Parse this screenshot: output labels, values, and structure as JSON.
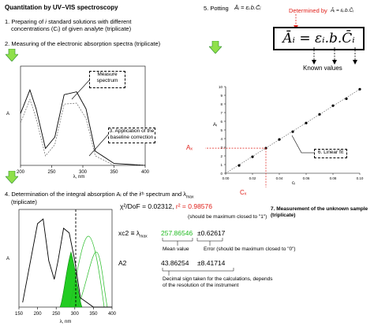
{
  "title": "Quantitation by UV–VIS spectroscopy",
  "steps": {
    "s1": "1. Preparing of i standard solutions with different concentrations (Cᵢ) of given analyte (triplicate)",
    "s1a": "1. Preparing of",
    "s1b": "i",
    "s1c": "standard solutions with different",
    "s1d": "concentrations (Cᵢ) of given analyte (triplicate)",
    "s2": "2. Measuring of the electronic absorption spectra (triplicate)",
    "s4a": "4. Determination of the integral absorption Aᵢ of the iᵗʰ spectrum and λ",
    "s4b": "max",
    "s4c": "(triplicate)",
    "s5": "5. Potting",
    "s7": "7. Measurement of the unknown sample (triplicate)"
  },
  "equation": {
    "small": "Āᵢ = εᵢ.b.C̄ᵢ",
    "big": "Āᵢ = εᵢ.b.C̄ᵢ",
    "determined_by": "Determined by",
    "known_values": "Known values"
  },
  "callouts": {
    "measure": "Measure spectrum",
    "baseline": "3. Application of the baseline correction",
    "linear": "6. Linear fit",
    "ax": "Aₓ",
    "cx": "Cₓ"
  },
  "fit": {
    "chi_label": "χ²/DoF =",
    "chi_value": "0.02312,",
    "r2_label": "r² =",
    "r2_value": "0.98576",
    "r2_note": "(should be maximum closed to \"1\")",
    "xc2_label": "xc2 ≡ λ",
    "xc2_sub": "max",
    "xc2_value": "257.86546",
    "xc2_err": "±0.62617",
    "mean_note": "Mean value",
    "err_note": "Error (should be maximum closed to \"0\")",
    "a2_label": "A2",
    "a2_value": "43.86254",
    "a2_err": "±8.41714",
    "decimal_note1": "Decimal sign taken for the calculations, depends",
    "decimal_note2": "of the resolution of the instrument"
  },
  "chart_data": [
    {
      "type": "line",
      "xlabel": "λ, nm",
      "ylabel": "A",
      "xlim": [
        200,
        400
      ],
      "x_ticks": [
        "200",
        "250",
        "300",
        "350",
        "400"
      ],
      "series": [
        {
          "values": [
            [
              200,
              0.55
            ],
            [
              215,
              0.8
            ],
            [
              225,
              0.6
            ],
            [
              240,
              0.18
            ],
            [
              255,
              0.3
            ],
            [
              270,
              0.75
            ],
            [
              290,
              0.78
            ],
            [
              305,
              0.6
            ],
            [
              320,
              0.15
            ],
            [
              350,
              0.02
            ],
            [
              400,
              0.0
            ]
          ]
        },
        {
          "values": [
            [
              200,
              0.45
            ],
            [
              215,
              0.7
            ],
            [
              225,
              0.5
            ],
            [
              240,
              0.1
            ],
            [
              255,
              0.22
            ],
            [
              270,
              0.65
            ],
            [
              290,
              0.66
            ],
            [
              305,
              0.5
            ],
            [
              320,
              0.1
            ],
            [
              350,
              0.0
            ],
            [
              400,
              0.0
            ]
          ]
        }
      ]
    },
    {
      "type": "scatter",
      "xlabel": "cᵢ",
      "ylabel": "Aᵢ",
      "xlim": [
        0,
        0.1
      ],
      "ylim": [
        0,
        10
      ],
      "x_ticks": [
        "0.00",
        "0.02",
        "0.04",
        "0.06",
        "0.08",
        "0.10"
      ],
      "y_ticks": [
        "0",
        "1",
        "2",
        "3",
        "4",
        "5",
        "6",
        "7",
        "8",
        "9",
        "10"
      ],
      "points": [
        [
          0.01,
          0.9
        ],
        [
          0.02,
          1.9
        ],
        [
          0.03,
          2.9
        ],
        [
          0.04,
          3.9
        ],
        [
          0.05,
          4.8
        ],
        [
          0.06,
          5.8
        ],
        [
          0.07,
          6.8
        ],
        [
          0.08,
          7.8
        ],
        [
          0.09,
          8.6
        ],
        [
          0.1,
          9.7
        ]
      ],
      "fit_line": [
        [
          0,
          0
        ],
        [
          0.1,
          9.7
        ]
      ],
      "unknown": {
        "x": 0.03,
        "y": 2.9
      }
    },
    {
      "type": "line",
      "xlabel": "λ, nm",
      "ylabel": "A",
      "xlim": [
        150,
        400
      ],
      "x_ticks": [
        "150",
        "200",
        "250",
        "300",
        "350",
        "400"
      ],
      "series": [
        {
          "values": [
            [
              160,
              0.05
            ],
            [
              200,
              0.9
            ],
            [
              215,
              0.95
            ],
            [
              230,
              0.5
            ],
            [
              245,
              0.3
            ],
            [
              255,
              0.5
            ],
            [
              270,
              0.85
            ],
            [
              285,
              0.8
            ],
            [
              300,
              0.5
            ],
            [
              315,
              0.1
            ],
            [
              350,
              0.0
            ],
            [
              400,
              0.0
            ]
          ]
        }
      ],
      "gaussian_peak_nm": 257.86546
    }
  ]
}
